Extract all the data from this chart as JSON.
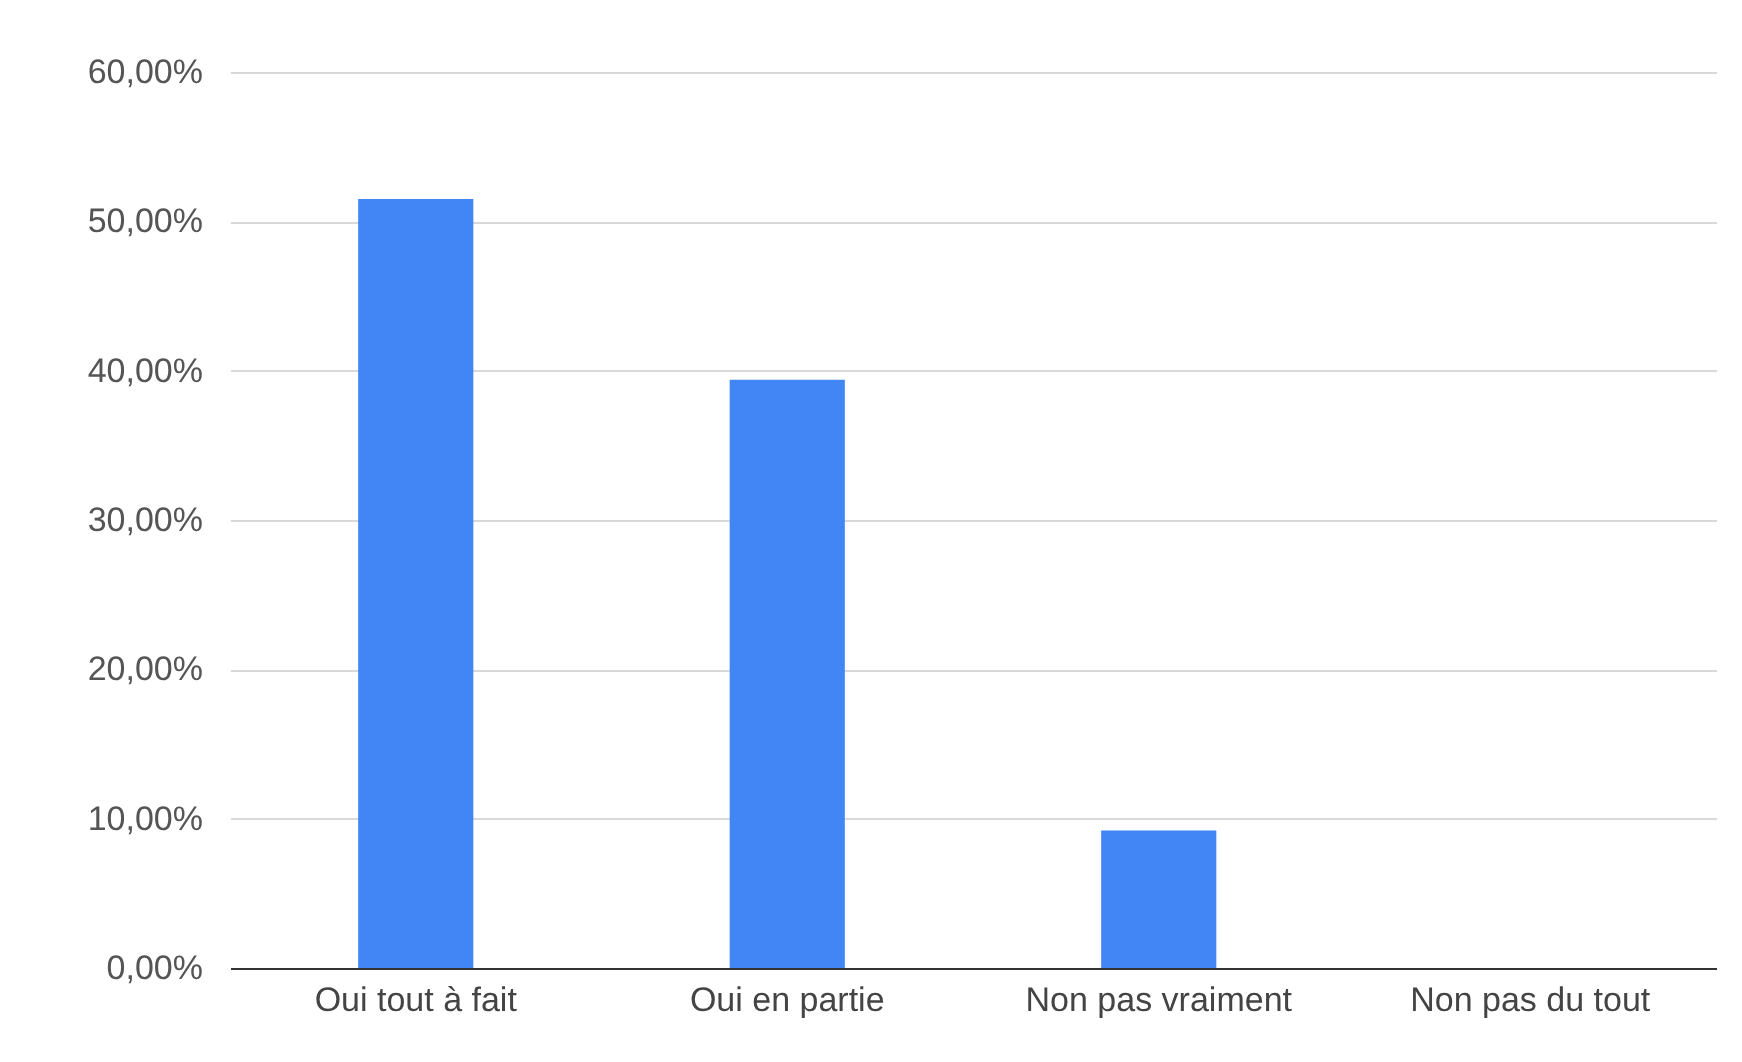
{
  "chart_data": {
    "type": "bar",
    "categories": [
      "Oui tout à fait",
      "Oui en partie",
      "Non pas vraiment",
      "Non pas du tout"
    ],
    "values": [
      51.5,
      39.4,
      9.2,
      0
    ],
    "color": "#4285f4",
    "ylim": [
      0,
      60
    ],
    "yticks": [
      {
        "value": 0,
        "label": "0,00%"
      },
      {
        "value": 10,
        "label": "10,00%"
      },
      {
        "value": 20,
        "label": "20,00%"
      },
      {
        "value": 30,
        "label": "30,00%"
      },
      {
        "value": 40,
        "label": "40,00%"
      },
      {
        "value": 50,
        "label": "50,00%"
      },
      {
        "value": 60,
        "label": "60,00%"
      }
    ],
    "grid": "y"
  }
}
